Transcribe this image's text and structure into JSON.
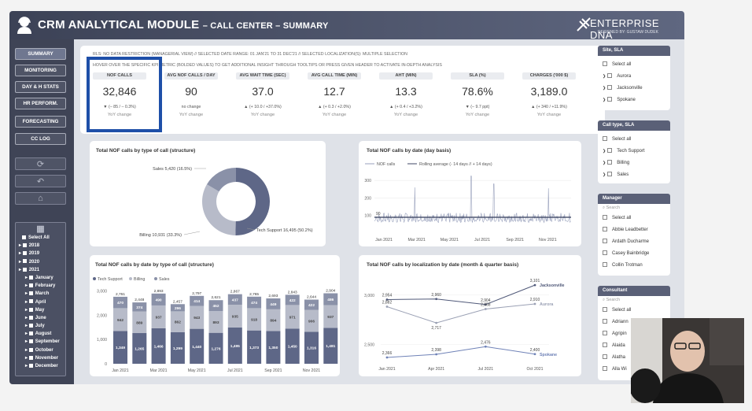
{
  "header": {
    "title": "CRM ANALYTICAL MODULE",
    "subtitle": "– CALL CENTER – SUMMARY",
    "brand": "ENTERPRISE",
    "brand2": "DNA",
    "designed_by": "DESIGNED BY: GUSTAW DUDEK"
  },
  "nav": {
    "buttons": [
      "SUMMARY",
      "MONITORING",
      "DAY & H STATS",
      "HR PERFORM.",
      "FORECASTING",
      "CC LOG"
    ],
    "date_tree": [
      "Select All",
      "2018",
      "2019",
      "2020",
      "2021",
      "January",
      "February",
      "March",
      "April",
      "May",
      "June",
      "July",
      "August",
      "September",
      "October",
      "November",
      "December"
    ]
  },
  "info": {
    "line1": "RLS: NO DATA RESTRICTION (MANAGERIAL VIEW)    //    SELECTED DATE RANGE: 01 JAN'21 TO 31 DEC'21    //    SELECTED LOCALIZATION(S): MULTIPLE SELECTION",
    "line2": "HOVER OVER THE SPECIFIC KPI METRIC (BOLDED VALUES) TO GET ADDITIONAL INSIGHT THROUGH TOOLTIPS OR PRESS GIVEN HEADER TO ACTIVATE IN-DEPTH ANALYSIS"
  },
  "kpis": [
    {
      "label": "NOF CALLS",
      "value": "32,846",
      "change": "▼ (– 85 / – 0.3%)",
      "yoy": "YoY change"
    },
    {
      "label": "AVG NOF CALLS / DAY",
      "value": "90",
      "change": "no change",
      "yoy": "YoY change"
    },
    {
      "label": "AVG WAIT TIME (SEC)",
      "value": "37.0",
      "change": "▲ (+ 10.0 / +37.0%)",
      "yoy": "YoY change"
    },
    {
      "label": "AVG CALL TIME (MIN)",
      "value": "12.7",
      "change": "▲ (+ 0.3 / +2.0%)",
      "yoy": "YoY change"
    },
    {
      "label": "AHT (MIN)",
      "value": "13.3",
      "change": "▲ (+ 0.4 / +3.2%)",
      "yoy": "YoY change"
    },
    {
      "label": "SLA (%)",
      "value": "78.6%",
      "change": "▼ (– 9.7 ppt)",
      "yoy": "YoY change"
    },
    {
      "label": "CHARGES ('000 $)",
      "value": "3,189.0",
      "change": "▲ (+ 340 / +11.9%)",
      "yoy": "YoY change"
    }
  ],
  "slicers": {
    "site": {
      "title": "Site, SLA",
      "items": [
        "Select all",
        "Aurora",
        "Jacksonville",
        "Spokane"
      ]
    },
    "calltype": {
      "title": "Call type, SLA",
      "items": [
        "Select all",
        "Tech Support",
        "Billing",
        "Sales"
      ]
    },
    "manager": {
      "title": "Manager",
      "search": "Search",
      "items": [
        "Select all",
        "Abbie Leadbetter",
        "Ardath Ducharme",
        "Casey Bainbridge",
        "Collin Trotman"
      ]
    },
    "consultant": {
      "title": "Consultant",
      "search": "Search",
      "items": [
        "Select all",
        "Adriann",
        "Agripin",
        "Alaida",
        "Alatha",
        "Alla Wi"
      ]
    }
  },
  "chart_data": [
    {
      "type": "pie",
      "title": "Total NOF calls by type of call (structure)",
      "slices": [
        {
          "name": "Tech Support",
          "label": "Tech Support 16,495 (50.2%)",
          "value": 16495,
          "color": "#5e6787"
        },
        {
          "name": "Billing",
          "label": "Billing 10,931 (33.3%)",
          "value": 10931,
          "color": "#b7bbc9"
        },
        {
          "name": "Sales",
          "label": "Sales 5,420 (16.5%)",
          "value": 5420,
          "color": "#8a91a8"
        }
      ]
    },
    {
      "type": "line",
      "title": "Total NOF calls by date (day basis)",
      "series": [
        {
          "name": "NOF calls",
          "color": "#9aa2bd"
        },
        {
          "name": "Rolling average (- 14 days // + 14 days)",
          "color": "#3f4764"
        }
      ],
      "y_ticks": [
        100,
        200,
        300
      ],
      "x_ticks": [
        "Jan 2021",
        "Mar 2021",
        "May 2021",
        "Jul 2021",
        "Sep 2021",
        "Nov 2021"
      ],
      "first_label": "90",
      "spikes": [
        {
          "month": 2.5,
          "value": 260
        },
        {
          "month": 5.9,
          "value": 325
        },
        {
          "month": 7.3,
          "value": 280
        },
        {
          "month": 10.6,
          "value": 255
        }
      ],
      "baseline": 90
    },
    {
      "type": "bar",
      "title": "Total NOF calls by date by type of call (structure)",
      "legend": [
        "Tech Support",
        "Billing",
        "Sales"
      ],
      "categories": [
        "Jan 2021",
        "Feb 2021",
        "Mar 2021",
        "Apr 2021",
        "May 2021",
        "Jun 2021",
        "Jul 2021",
        "Aug 2021",
        "Sep 2021",
        "Oct 2021",
        "Nov 2021",
        "Dec 2021"
      ],
      "x_tick_labels": [
        "Jan 2021",
        "",
        "Mar 2021",
        "",
        "May 2021",
        "",
        "Jul 2021",
        "",
        "Sep 2021",
        "",
        "Nov 2021",
        ""
      ],
      "totals": [
        2761,
        2448,
        2893,
        2457,
        2797,
        2621,
        2867,
        2765,
        2693,
        2843,
        2644,
        2904
      ],
      "series": [
        {
          "name": "Tech Support",
          "color": "#5e6787",
          "values": [
            1349,
            1265,
            1466,
            1299,
            1440,
            1276,
            1495,
            1373,
            1350,
            1450,
            1316,
            1481
          ]
        },
        {
          "name": "Billing",
          "color": "#b7bbc9",
          "values": [
            942,
            889,
            937,
            862,
            943,
            893,
            935,
            918,
            894,
            971,
            906,
            937
          ]
        },
        {
          "name": "Sales",
          "color": "#8a91a8",
          "values": [
            470,
            374,
            490,
            296,
            414,
            452,
            437,
            474,
            449,
            422,
            422,
            486
          ]
        }
      ],
      "y_ticks": [
        0,
        1000,
        2000,
        3000
      ],
      "ylim": [
        0,
        3000
      ]
    },
    {
      "type": "line",
      "title": "Total NOF calls by localization by date (month & quarter basis)",
      "categories": [
        "Jan 2021",
        "Apr 2021",
        "Jul 2021",
        "Oct 2021"
      ],
      "series": [
        {
          "name": "Jacksonville",
          "color": "#4f5878",
          "values": [
            2954,
            2960,
            2904,
            3101
          ],
          "labels": [
            "2,954",
            "2,960",
            "2,904",
            "3,101"
          ]
        },
        {
          "name": "Aurora",
          "color": "#9aa0b4",
          "values": [
            2882,
            2717,
            2858,
            2910
          ],
          "labels": [
            "2,882",
            "2,717",
            "2,858",
            "2,910"
          ]
        },
        {
          "name": "Spokane",
          "color": "#6f82b7",
          "values": [
            2366,
            2398,
            2476,
            2400
          ],
          "labels": [
            "2,366",
            "2,398",
            "2,476",
            "2,400"
          ]
        }
      ],
      "y_ticks": [
        2500,
        3000
      ],
      "ylim": [
        2350,
        3150
      ]
    }
  ]
}
